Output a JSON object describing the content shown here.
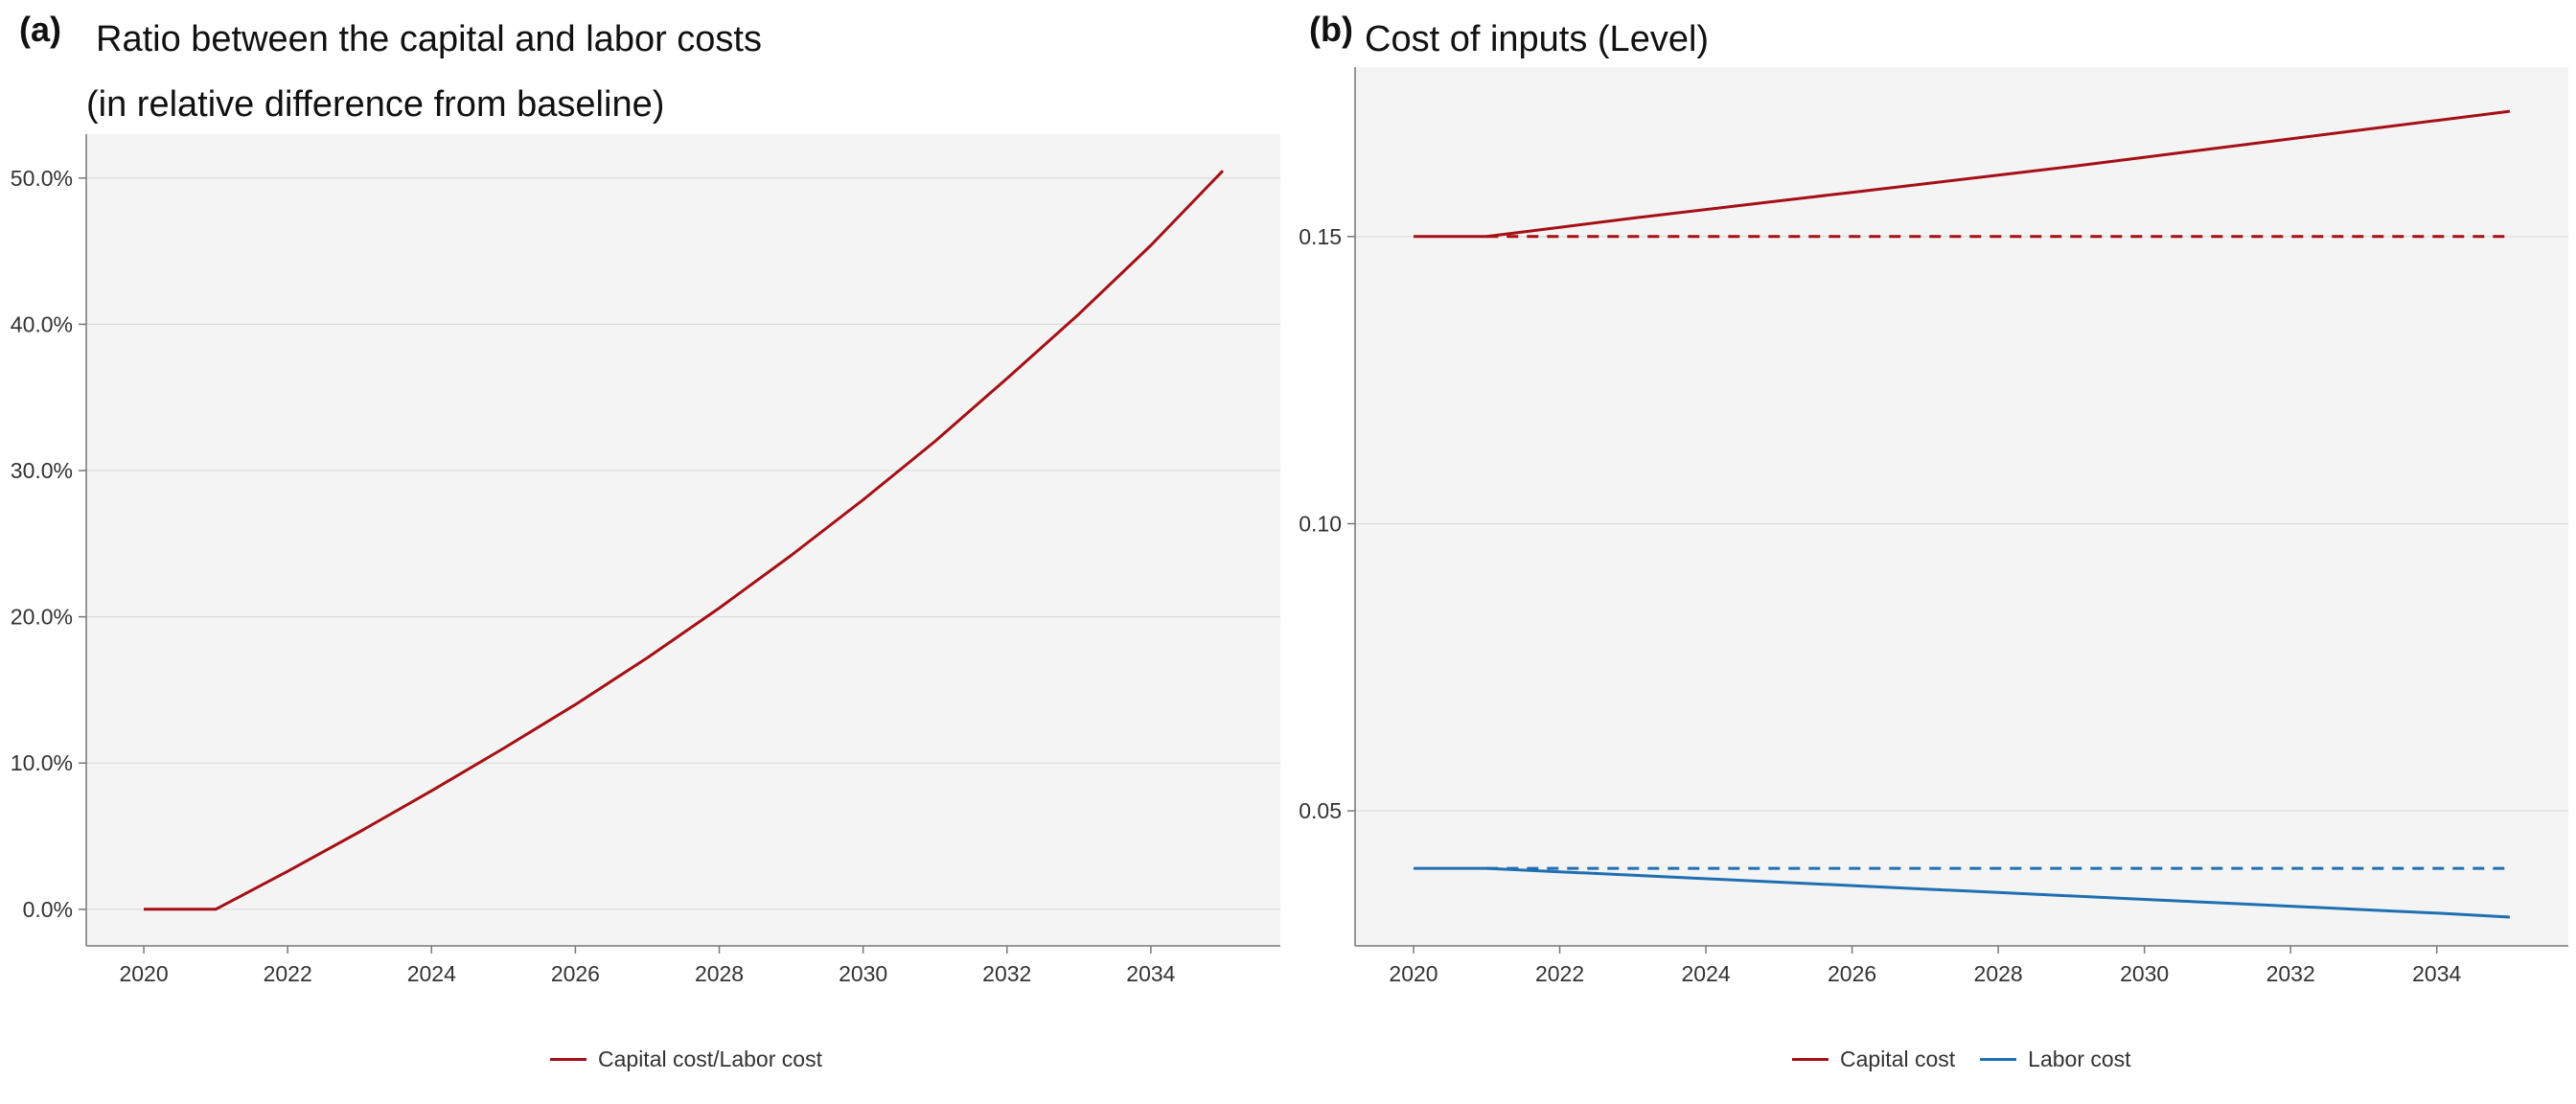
{
  "chart_data": [
    {
      "type": "line",
      "panel_label": "(a)",
      "title": "Ratio between the capital and labor costs",
      "subtitle": "(in relative difference from baseline)",
      "xlabel": "",
      "ylabel": "",
      "x_ticks": [
        "2020",
        "2022",
        "2024",
        "2026",
        "2028",
        "2030",
        "2032",
        "2034"
      ],
      "y_ticks": [
        "0.0%",
        "10.0%",
        "20.0%",
        "30.0%",
        "40.0%",
        "50.0%"
      ],
      "xlim": [
        2019.2,
        2035.8
      ],
      "ylim": [
        -2.5,
        53
      ],
      "grid": "horizontal",
      "legend_position": "bottom",
      "x": [
        2020,
        2021,
        2022,
        2023,
        2024,
        2025,
        2026,
        2027,
        2028,
        2029,
        2030,
        2031,
        2032,
        2033,
        2034,
        2035
      ],
      "series": [
        {
          "name": "Capital cost/Labor cost",
          "color": "#a50f15",
          "style": "solid",
          "values": [
            0.0,
            0.0,
            2.6,
            5.3,
            8.1,
            11.0,
            14.0,
            17.2,
            20.6,
            24.2,
            28.0,
            32.0,
            36.3,
            40.7,
            45.4,
            50.5
          ]
        }
      ]
    },
    {
      "type": "line",
      "panel_label": "(b)",
      "title": "Cost of inputs (Level)",
      "xlabel": "",
      "ylabel": "",
      "x_ticks": [
        "2020",
        "2022",
        "2024",
        "2026",
        "2028",
        "2030",
        "2032",
        "2034"
      ],
      "y_ticks": [
        "0.05",
        "0.10",
        "0.15"
      ],
      "y_tick_values": [
        0.05,
        0.1,
        0.15
      ],
      "xlim": [
        2019.2,
        2035.8
      ],
      "ylim": [
        0.0265,
        0.1795
      ],
      "grid": "horizontal",
      "legend_position": "bottom",
      "x": [
        2020,
        2021,
        2022,
        2023,
        2024,
        2025,
        2026,
        2027,
        2028,
        2029,
        2030,
        2031,
        2032,
        2033,
        2034,
        2035
      ],
      "series": [
        {
          "name": "Capital cost",
          "color": "#a50f15",
          "style": "solid",
          "values": [
            0.15,
            0.15,
            0.1516,
            0.1532,
            0.1547,
            0.1562,
            0.1577,
            0.1592,
            0.1607,
            0.1622,
            0.1638,
            0.1654,
            0.167,
            0.1686,
            0.1702,
            0.1718
          ]
        },
        {
          "color": "#a50f15",
          "style": "dashed",
          "values": [
            0.15,
            0.15,
            0.15,
            0.15,
            0.15,
            0.15,
            0.15,
            0.15,
            0.15,
            0.15,
            0.15,
            0.15,
            0.15,
            0.15,
            0.15,
            0.15
          ]
        },
        {
          "name": "Labor cost",
          "color": "#1f6fb2",
          "style": "solid",
          "values": [
            0.04,
            0.04,
            0.0394,
            0.0388,
            0.0382,
            0.0376,
            0.037,
            0.0364,
            0.0358,
            0.0352,
            0.0346,
            0.034,
            0.0334,
            0.0328,
            0.0322,
            0.0315
          ]
        },
        {
          "color": "#1f6fb2",
          "style": "dashed",
          "values": [
            0.04,
            0.04,
            0.04,
            0.04,
            0.04,
            0.04,
            0.04,
            0.04,
            0.04,
            0.04,
            0.04,
            0.04,
            0.04,
            0.04,
            0.04,
            0.04
          ]
        }
      ]
    }
  ],
  "style": {
    "plot_background": "#f4f4f4",
    "grid_color": "#dddddd",
    "axis_color": "#777777"
  }
}
